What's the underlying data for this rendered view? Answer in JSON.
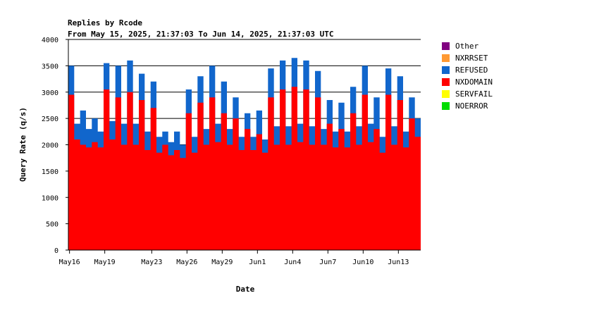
{
  "chart_data": {
    "type": "area",
    "stacked": true,
    "title": "Replies by Rcode",
    "subtitle": "From May 15, 2025, 21:37:03 To Jun 14, 2025, 21:37:03 UTC",
    "xlabel": "Date",
    "ylabel": "Query Rate (q/s)",
    "ylim": [
      0,
      4000
    ],
    "yticks": [
      0,
      500,
      1000,
      1500,
      2000,
      2500,
      3000,
      3500,
      4000
    ],
    "grid": true,
    "legend_position": "right",
    "x_start": "2025-05-15T21:37:03Z",
    "x_end": "2025-06-14T21:37:03Z",
    "xticks": [
      {
        "date": "2025-05-16",
        "label": "May16"
      },
      {
        "date": "2025-05-19",
        "label": "May19"
      },
      {
        "date": "2025-05-23",
        "label": "May23"
      },
      {
        "date": "2025-05-26",
        "label": "May26"
      },
      {
        "date": "2025-05-29",
        "label": "May29"
      },
      {
        "date": "2025-06-01",
        "label": "Jun1"
      },
      {
        "date": "2025-06-04",
        "label": "Jun4"
      },
      {
        "date": "2025-06-07",
        "label": "Jun7"
      },
      {
        "date": "2025-06-10",
        "label": "Jun10"
      },
      {
        "date": "2025-06-13",
        "label": "Jun13"
      }
    ],
    "legend": [
      {
        "name": "Other",
        "color": "#800080"
      },
      {
        "name": "NXRRSET",
        "color": "#ff9933"
      },
      {
        "name": "REFUSED",
        "color": "#1166cc"
      },
      {
        "name": "NXDOMAIN",
        "color": "#ff0000"
      },
      {
        "name": "SERVFAIL",
        "color": "#ffff00"
      },
      {
        "name": "NOERROR",
        "color": "#00dd00"
      }
    ],
    "series": [
      {
        "name": "NXDOMAIN",
        "color": "#ff0000",
        "x": [
          "May16 00:00",
          "May16 12:00",
          "May17 00:00",
          "May17 12:00",
          "May18 00:00",
          "May18 12:00",
          "May19 00:00",
          "May19 12:00",
          "May20 00:00",
          "May20 12:00",
          "May21 00:00",
          "May21 12:00",
          "May22 00:00",
          "May22 12:00",
          "May23 00:00",
          "May23 12:00",
          "May24 00:00",
          "May24 12:00",
          "May25 00:00",
          "May25 12:00",
          "May26 00:00",
          "May26 12:00",
          "May27 00:00",
          "May27 12:00",
          "May28 00:00",
          "May28 12:00",
          "May29 00:00",
          "May29 12:00",
          "May30 00:00",
          "May30 12:00",
          "May31 00:00",
          "May31 12:00",
          "Jun1 00:00",
          "Jun1 12:00",
          "Jun2 00:00",
          "Jun2 12:00",
          "Jun3 00:00",
          "Jun3 12:00",
          "Jun4 00:00",
          "Jun4 12:00",
          "Jun5 00:00",
          "Jun5 12:00",
          "Jun6 00:00",
          "Jun6 12:00",
          "Jun7 00:00",
          "Jun7 12:00",
          "Jun8 00:00",
          "Jun8 12:00",
          "Jun9 00:00",
          "Jun9 12:00",
          "Jun10 00:00",
          "Jun10 12:00",
          "Jun11 00:00",
          "Jun11 12:00",
          "Jun12 00:00",
          "Jun12 12:00",
          "Jun13 00:00",
          "Jun13 12:00",
          "Jun14 00:00",
          "Jun14 12:00"
        ],
        "values": [
          2950,
          2100,
          2000,
          1950,
          2050,
          1950,
          3050,
          2100,
          2900,
          2000,
          3000,
          2000,
          2850,
          1900,
          2700,
          1850,
          2000,
          1800,
          1900,
          1750,
          2600,
          1850,
          2800,
          2000,
          2900,
          2050,
          2600,
          2000,
          2500,
          1900,
          2300,
          1900,
          2200,
          1850,
          2900,
          2000,
          3050,
          2000,
          3100,
          2050,
          3050,
          2000,
          2900,
          2000,
          2400,
          1950,
          2300,
          1950,
          2600,
          2000,
          2950,
          2050,
          2300,
          1850,
          2950,
          2000,
          2850,
          1950,
          2500,
          2150
        ]
      },
      {
        "name": "REFUSED",
        "color": "#1166cc",
        "x": [
          "May16 00:00",
          "May16 12:00",
          "May17 00:00",
          "May17 12:00",
          "May18 00:00",
          "May18 12:00",
          "May19 00:00",
          "May19 12:00",
          "May20 00:00",
          "May20 12:00",
          "May21 00:00",
          "May21 12:00",
          "May22 00:00",
          "May22 12:00",
          "May23 00:00",
          "May23 12:00",
          "May24 00:00",
          "May24 12:00",
          "May25 00:00",
          "May25 12:00",
          "May26 00:00",
          "May26 12:00",
          "May27 00:00",
          "May27 12:00",
          "May28 00:00",
          "May28 12:00",
          "May29 00:00",
          "May29 12:00",
          "May30 00:00",
          "May30 12:00",
          "May31 00:00",
          "May31 12:00",
          "Jun1 00:00",
          "Jun1 12:00",
          "Jun2 00:00",
          "Jun2 12:00",
          "Jun3 00:00",
          "Jun3 12:00",
          "Jun4 00:00",
          "Jun4 12:00",
          "Jun5 00:00",
          "Jun5 12:00",
          "Jun6 00:00",
          "Jun6 12:00",
          "Jun7 00:00",
          "Jun7 12:00",
          "Jun8 00:00",
          "Jun8 12:00",
          "Jun9 00:00",
          "Jun9 12:00",
          "Jun10 00:00",
          "Jun10 12:00",
          "Jun11 00:00",
          "Jun11 12:00",
          "Jun12 00:00",
          "Jun12 12:00",
          "Jun13 00:00",
          "Jun13 12:00",
          "Jun14 00:00",
          "Jun14 12:00"
        ],
        "values": [
          550,
          300,
          650,
          350,
          450,
          300,
          500,
          350,
          600,
          400,
          600,
          400,
          500,
          350,
          500,
          300,
          250,
          250,
          350,
          250,
          450,
          300,
          500,
          300,
          600,
          350,
          600,
          300,
          400,
          250,
          300,
          250,
          450,
          250,
          550,
          350,
          550,
          350,
          550,
          350,
          550,
          350,
          500,
          300,
          450,
          300,
          500,
          300,
          500,
          350,
          550,
          350,
          600,
          300,
          500,
          350,
          450,
          300,
          400,
          350
        ]
      },
      {
        "name": "Other",
        "color": "#800080",
        "values": [
          0
        ]
      },
      {
        "name": "NXRRSET",
        "color": "#ff9933",
        "values": [
          0
        ]
      },
      {
        "name": "SERVFAIL",
        "color": "#ffff00",
        "values": [
          0
        ]
      },
      {
        "name": "NOERROR",
        "color": "#00dd00",
        "values": [
          0
        ]
      }
    ]
  }
}
